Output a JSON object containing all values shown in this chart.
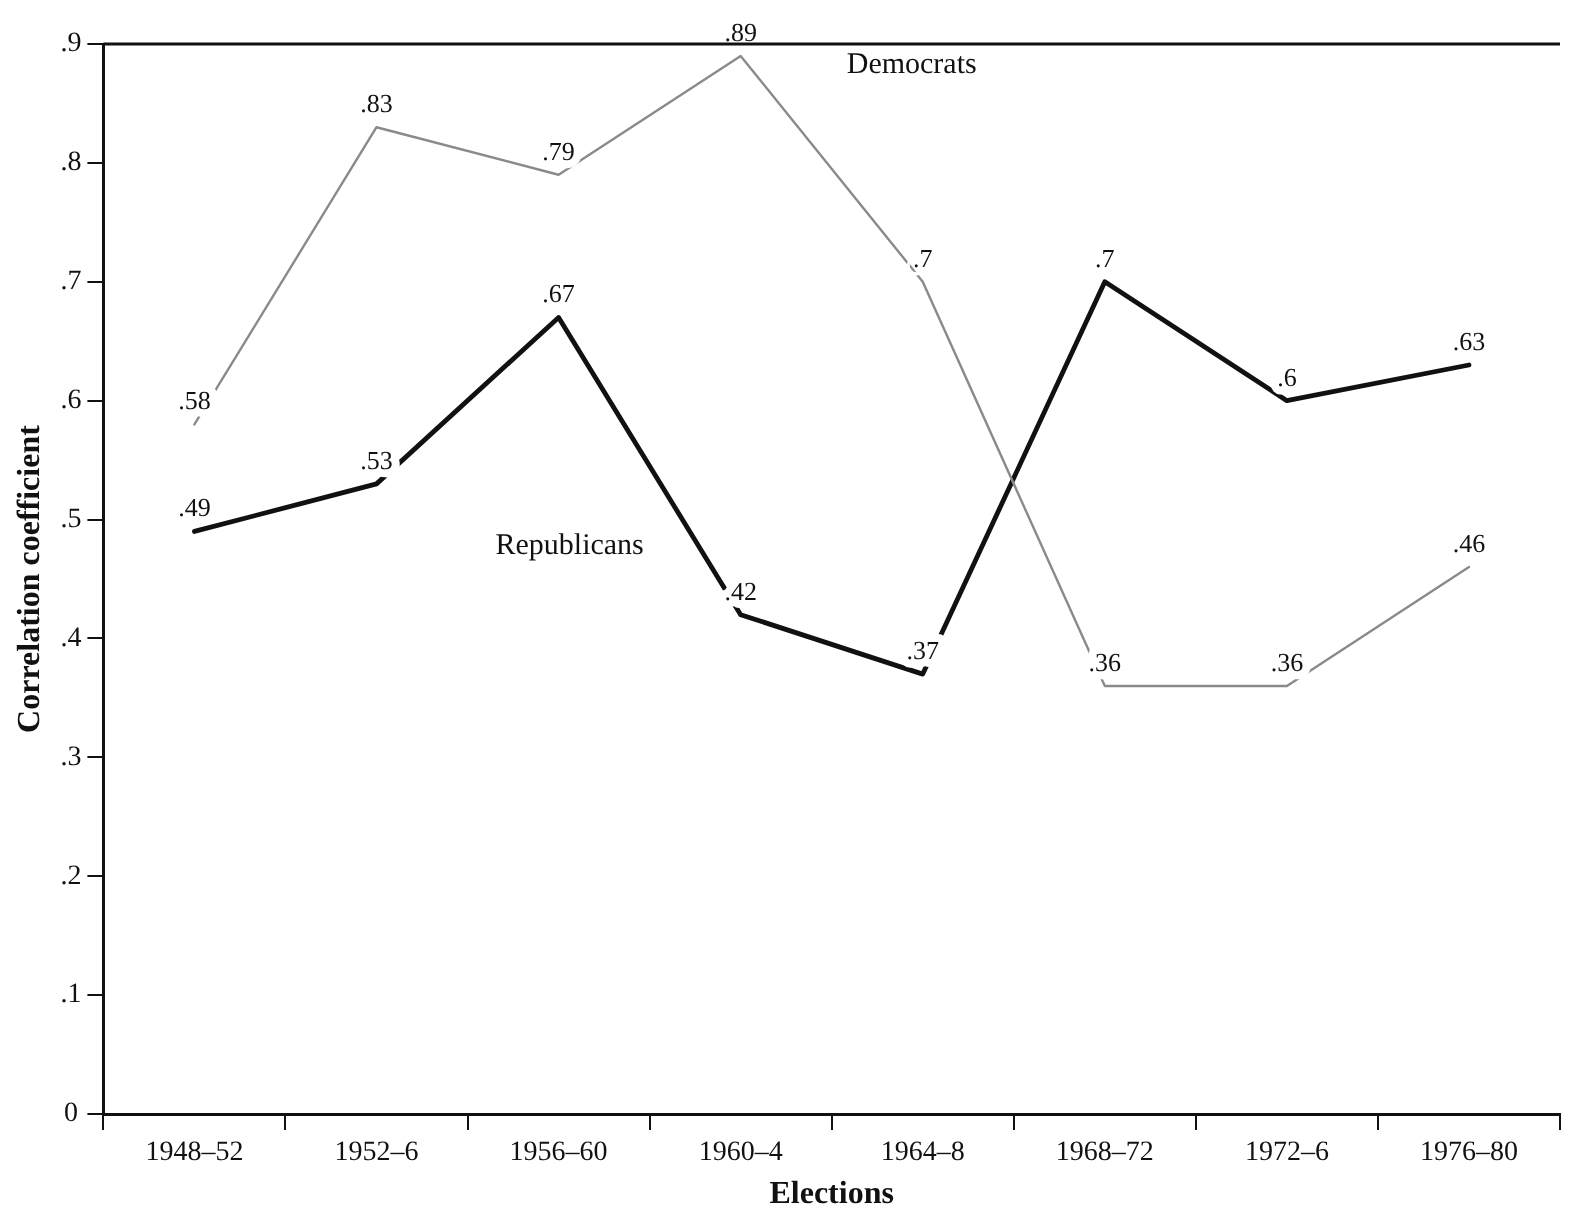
{
  "chart_data": {
    "type": "line",
    "xlabel": "Elections",
    "ylabel": "Correlation coefficient",
    "categories": [
      "1948–52",
      "1952–6",
      "1956–60",
      "1960–4",
      "1964–8",
      "1968–72",
      "1972–6",
      "1976–80"
    ],
    "series": [
      {
        "name": "Democrats",
        "color": "#8a8a8a",
        "values": [
          0.58,
          0.83,
          0.79,
          0.89,
          0.7,
          0.36,
          0.36,
          0.46
        ],
        "value_labels": [
          ".58",
          ".83",
          ".79",
          ".89",
          ".7",
          ".36",
          ".36",
          ".46"
        ]
      },
      {
        "name": "Republicans",
        "color": "#111111",
        "values": [
          0.49,
          0.53,
          0.67,
          0.42,
          0.37,
          0.7,
          0.6,
          0.63
        ],
        "value_labels": [
          ".49",
          ".53",
          ".67",
          ".42",
          ".37",
          ".7",
          ".6",
          ".63"
        ]
      }
    ],
    "ylim": [
      0,
      0.9
    ],
    "yticks": [
      0,
      {
        "value": 0.1,
        "label": ".1"
      },
      {
        "value": 0.2,
        "label": ".2"
      },
      {
        "value": 0.3,
        "label": ".3"
      },
      {
        "value": 0.4,
        "label": ".4"
      },
      {
        "value": 0.5,
        "label": ".5"
      },
      {
        "value": 0.6,
        "label": ".6"
      },
      {
        "value": 0.7,
        "label": ".7"
      },
      {
        "value": 0.8,
        "label": ".8"
      },
      {
        "value": 0.9,
        "label": ".9"
      }
    ],
    "grid": false,
    "legend": false,
    "line_style": "solid"
  }
}
